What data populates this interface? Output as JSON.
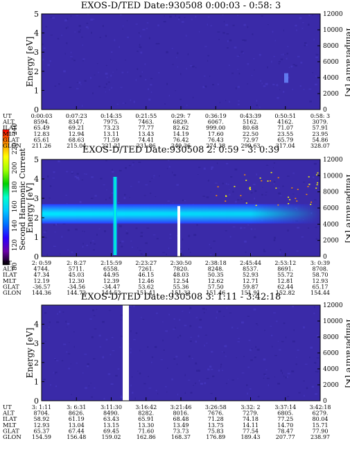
{
  "colors": {
    "background": "#3a2aa8",
    "colorbar": [
      "#000000",
      "#6a00a8",
      "#2a00ff",
      "#0070ff",
      "#00c8ff",
      "#00ffd0",
      "#00d000",
      "#a0ff00",
      "#ffff00",
      "#ff9000",
      "#ff0000"
    ]
  },
  "colorbar": {
    "label": "Second Harmonic Current",
    "ticks": [
      "80",
      "120",
      "140",
      "160",
      "180",
      "200",
      "220",
      "240"
    ]
  },
  "chart_data": [
    {
      "type": "heatmap",
      "title": "EXOS-D/TED   Date:930508   0:00:03 - 0:58: 3",
      "ylabel": "Energy [eV]",
      "y2label": "Temperature [K]",
      "yticks": [
        "0",
        "1",
        "2",
        "3",
        "4",
        "5"
      ],
      "y2ticks": [
        "0",
        "2000",
        "4000",
        "6000",
        "8000",
        "10000",
        "12000"
      ],
      "ylim": [
        0,
        5
      ],
      "y2lim": [
        0,
        12000
      ],
      "rows": [
        {
          "label": "UT",
          "values": [
            "0:00:03",
            "0:07:23",
            "0:14:35",
            "0:21:55",
            "0:29: 7",
            "0:36:19",
            "0:43:39",
            "0:50:51",
            "0:58: 3"
          ]
        },
        {
          "label": "ALT",
          "values": [
            "8594.",
            "8347.",
            "7975.",
            "7463.",
            "6829.",
            "6067.",
            "5162.",
            "4162.",
            "3079."
          ]
        },
        {
          "label": "ILAT",
          "values": [
            "65.49",
            "69.21",
            "73.23",
            "77.77",
            "82.62",
            "999.00",
            "80.68",
            "71.07",
            "57.91"
          ]
        },
        {
          "label": "MLT",
          "values": [
            "12.83",
            "12.94",
            "13.11",
            "13.43",
            "14.19",
            "17.60",
            "22.50",
            "23.55",
            "23.95"
          ]
        },
        {
          "label": "GLAT",
          "values": [
            "65.61",
            "68.63",
            "71.59",
            "74.41",
            "76.42",
            "76.43",
            "72.97",
            "65.79",
            "54.86"
          ]
        },
        {
          "label": "GLON",
          "values": [
            "211.26",
            "215.04",
            "221.21",
            "231.86",
            "249.36",
            "274.38",
            "299.63",
            "317.04",
            "328.07"
          ]
        }
      ],
      "band": null
    },
    {
      "type": "heatmap",
      "title": "EXOS-D/TED   Date:930508   2: 0:59 - 3: 0:39",
      "ylabel": "Energy [eV]",
      "y2label": "Temperature [K]",
      "yticks": [
        "0",
        "1",
        "2",
        "3",
        "4",
        "5"
      ],
      "y2ticks": [
        "0",
        "2000",
        "4000",
        "6000",
        "8000",
        "10000",
        "12000"
      ],
      "ylim": [
        0,
        5
      ],
      "y2lim": [
        0,
        12000
      ],
      "rows": [
        {
          "label": "UT",
          "values": [
            "2: 0:59",
            "2: 8:27",
            "2:15:59",
            "2:23:27",
            "2:30:50",
            "2:38:18",
            "2:45:44",
            "2:53:12",
            "3: 0:39"
          ]
        },
        {
          "label": "ALT",
          "values": [
            "4744.",
            "5711.",
            "6558.",
            "7261.",
            "7820.",
            "8248.",
            "8537.",
            "8691.",
            "8708."
          ]
        },
        {
          "label": "ILAT",
          "values": [
            "47.34",
            "45.03",
            "44.95",
            "46.15",
            "48.03",
            "50.35",
            "52.93",
            "55.72",
            "58.70"
          ]
        },
        {
          "label": "MLT",
          "values": [
            "12.19",
            "12.30",
            "12.39",
            "12.46",
            "12.54",
            "12.62",
            "12.71",
            "12.81",
            "12.93"
          ]
        },
        {
          "label": "GLAT",
          "values": [
            "-36.57",
            "-34.56",
            "-34.47",
            "53.62",
            "55.36",
            "57.50",
            "59.87",
            "62.44",
            "65.17"
          ]
        },
        {
          "label": "GLON",
          "values": [
            "144.36",
            "144.72",
            "144.52",
            "151.41",
            "151.33",
            "151.46",
            "151.91",
            "152.82",
            "154.44"
          ]
        }
      ],
      "band": {
        "center_energy": 2.2,
        "half_width": 0.5
      }
    },
    {
      "type": "heatmap",
      "title": "EXOS-D/TED   Date:930508   3: 1:11 - 3:42:18",
      "ylabel": "Energy [eV]",
      "y2label": "Temperature [K]",
      "yticks": [
        "0",
        "1",
        "2",
        "3",
        "4"
      ],
      "y2ticks": [
        "0",
        "2000",
        "4000",
        "6000",
        "8000",
        "10000",
        "12000"
      ],
      "ylim": [
        0,
        5
      ],
      "y2lim": [
        0,
        12000
      ],
      "rows": [
        {
          "label": "UT",
          "values": [
            "3: 1:11",
            "3: 6:31",
            "3:11:30",
            "3:16:42",
            "3:21:46",
            "3:26:58",
            "3:32: 2",
            "3:37:14",
            "3:42:18"
          ]
        },
        {
          "label": "ALT",
          "values": [
            "8704.",
            "8626.",
            "8490.",
            "8282.",
            "8016.",
            "7676.",
            "7279.",
            "6805.",
            "6279."
          ]
        },
        {
          "label": "ILAT",
          "values": [
            "58.92",
            "61.19",
            "63.43",
            "65.91",
            "68.48",
            "71.28",
            "74.18",
            "77.25",
            "80.04"
          ]
        },
        {
          "label": "MLT",
          "values": [
            "12.93",
            "13.04",
            "13.15",
            "13.30",
            "13.49",
            "13.75",
            "14.11",
            "14.70",
            "15.71"
          ]
        },
        {
          "label": "GLAT",
          "values": [
            "65.37",
            "67.44",
            "69.45",
            "71.60",
            "73.73",
            "75.83",
            "77.54",
            "78.47",
            "77.90"
          ]
        },
        {
          "label": "GLON",
          "values": [
            "154.59",
            "156.48",
            "159.02",
            "162.86",
            "168.37",
            "176.89",
            "189.43",
            "207.77",
            "238.97"
          ]
        }
      ],
      "band": null
    }
  ]
}
